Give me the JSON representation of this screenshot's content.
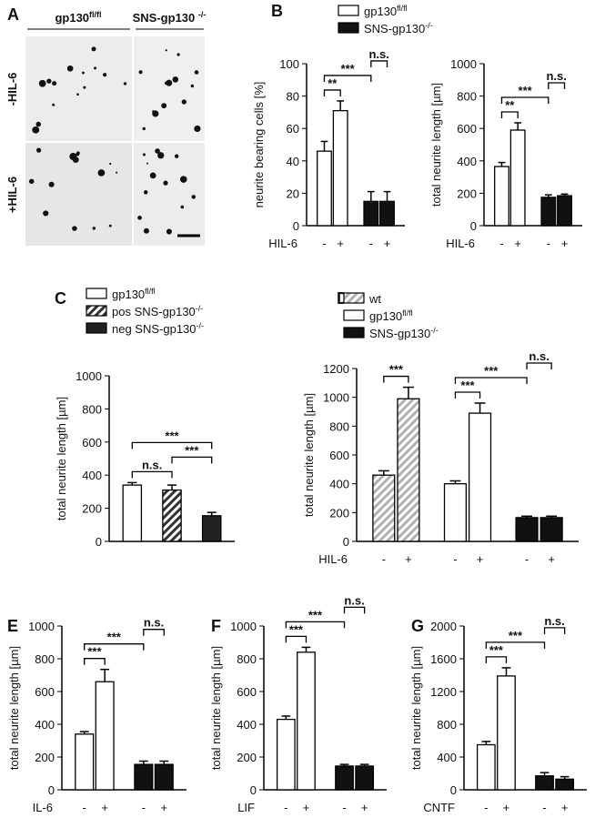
{
  "panel_a": {
    "label": "A",
    "columns": [
      {
        "text": "gp130",
        "sup": "fl/fl"
      },
      {
        "text": "SNS-gp130 ",
        "sup": "-/-"
      }
    ],
    "rows": [
      "-HIL-6",
      "+HIL-6"
    ]
  },
  "chart_data": [
    {
      "type": "bar",
      "panel": "B",
      "ylabel": "neurite bearing cells [%]",
      "xlabel": "HIL-6",
      "categories": [
        "-",
        "+",
        "-",
        "+"
      ],
      "ylim": [
        0,
        100
      ],
      "yticks": [
        0,
        20,
        40,
        60,
        80,
        100
      ],
      "series": [
        {
          "name": "gp130",
          "name_sup": "fl/fl",
          "color": "#ffffff",
          "values": [
            46,
            71,
            null,
            null
          ],
          "errors": [
            6,
            6,
            null,
            null
          ]
        },
        {
          "name": "SNS-gp130",
          "name_sup": "-/-",
          "color": "#111111",
          "values": [
            null,
            null,
            15,
            15
          ],
          "errors": [
            null,
            null,
            6,
            6
          ]
        }
      ],
      "annotations": [
        {
          "text": "**",
          "from": 0,
          "to": 1
        },
        {
          "text": "***",
          "from": 0,
          "to": 2
        },
        {
          "text": "n.s.",
          "from": 2,
          "to": 3
        }
      ]
    },
    {
      "type": "bar",
      "ylabel": "total neurite length [µm]",
      "xlabel": "HIL-6",
      "categories": [
        "-",
        "+",
        "-",
        "+"
      ],
      "ylim": [
        0,
        1000
      ],
      "yticks": [
        0,
        200,
        400,
        600,
        800,
        1000
      ],
      "series": [
        {
          "color": "#ffffff",
          "values": [
            365,
            590,
            null,
            null
          ],
          "errors": [
            25,
            45,
            null,
            null
          ]
        },
        {
          "color": "#111111",
          "values": [
            null,
            null,
            175,
            185
          ],
          "errors": [
            null,
            null,
            15,
            10
          ]
        }
      ],
      "annotations": [
        {
          "text": "**",
          "from": 0,
          "to": 1
        },
        {
          "text": "***",
          "from": 0,
          "to": 2
        },
        {
          "text": "n.s.",
          "from": 2,
          "to": 3
        }
      ]
    },
    {
      "type": "bar",
      "panel": "C",
      "ylabel": "total neurite length [µm]",
      "ylim": [
        0,
        1000
      ],
      "yticks": [
        0,
        200,
        400,
        600,
        800,
        1000
      ],
      "series": [
        {
          "name": "gp130",
          "name_sup": "fl/fl",
          "color": "#ffffff",
          "values": [
            340,
            null,
            null
          ],
          "errors": [
            15,
            null,
            null
          ]
        },
        {
          "name": "pos SNS-gp130",
          "name_sup": "-/-",
          "color": "#333333",
          "hatch": true,
          "values": [
            null,
            310,
            null
          ],
          "errors": [
            null,
            30,
            null
          ]
        },
        {
          "name": "neg SNS-gp130",
          "name_sup": "-/-",
          "color": "#222222",
          "values": [
            null,
            null,
            155
          ],
          "errors": [
            null,
            null,
            20
          ]
        }
      ],
      "annotations": [
        {
          "text": "n.s.",
          "from": 0,
          "to": 1
        },
        {
          "text": "***",
          "from": 1,
          "to": 2
        },
        {
          "text": "***",
          "from": 0,
          "to": 2
        }
      ]
    },
    {
      "type": "bar",
      "panel": "D",
      "ylabel": "total neurite length [µm]",
      "xlabel": "HIL-6",
      "categories": [
        "-",
        "+",
        "-",
        "+",
        "-",
        "+"
      ],
      "ylim": [
        0,
        1200
      ],
      "yticks": [
        0,
        200,
        400,
        600,
        800,
        1000,
        1200
      ],
      "series": [
        {
          "name": "wt",
          "color": "#b0b0b0",
          "hatch": true,
          "values": [
            460,
            990,
            null,
            null,
            null,
            null
          ],
          "errors": [
            30,
            80,
            null,
            null,
            null,
            null
          ]
        },
        {
          "name": "gp130",
          "name_sup": "fl/fl",
          "color": "#ffffff",
          "values": [
            null,
            null,
            400,
            890,
            null,
            null
          ],
          "errors": [
            null,
            null,
            20,
            70,
            null,
            null
          ]
        },
        {
          "name": "SNS-gp130",
          "name_sup": "-/-",
          "color": "#111111",
          "values": [
            null,
            null,
            null,
            null,
            165,
            165
          ],
          "errors": [
            null,
            null,
            null,
            null,
            10,
            10
          ]
        }
      ],
      "annotations": [
        {
          "text": "***",
          "from": 0,
          "to": 1
        },
        {
          "text": "***",
          "from": 2,
          "to": 3
        },
        {
          "text": "***",
          "from": 2,
          "to": 4
        },
        {
          "text": "n.s.",
          "from": 4,
          "to": 5
        }
      ]
    },
    {
      "type": "bar",
      "panel": "E",
      "ylabel": "total neurite length [µm]",
      "xlabel": "IL-6",
      "categories": [
        "-",
        "+",
        "-",
        "+"
      ],
      "ylim": [
        0,
        1000
      ],
      "yticks": [
        0,
        200,
        400,
        600,
        800,
        1000
      ],
      "series": [
        {
          "color": "#ffffff",
          "values": [
            340,
            660,
            null,
            null
          ],
          "errors": [
            15,
            75,
            null,
            null
          ]
        },
        {
          "color": "#111111",
          "values": [
            null,
            null,
            155,
            155
          ],
          "errors": [
            null,
            null,
            20,
            20
          ]
        }
      ],
      "annotations": [
        {
          "text": "***",
          "from": 0,
          "to": 1
        },
        {
          "text": "***",
          "from": 0,
          "to": 2
        },
        {
          "text": "n.s.",
          "from": 2,
          "to": 3
        }
      ]
    },
    {
      "type": "bar",
      "panel": "F",
      "ylabel": "total neurite length [µm]",
      "xlabel": "LIF",
      "categories": [
        "-",
        "+",
        "-",
        "+"
      ],
      "ylim": [
        0,
        1000
      ],
      "yticks": [
        0,
        200,
        400,
        600,
        800,
        1000
      ],
      "series": [
        {
          "color": "#ffffff",
          "values": [
            430,
            840,
            null,
            null
          ],
          "errors": [
            20,
            30,
            null,
            null
          ]
        },
        {
          "color": "#111111",
          "values": [
            null,
            null,
            145,
            145
          ],
          "errors": [
            null,
            null,
            10,
            10
          ]
        }
      ],
      "annotations": [
        {
          "text": "***",
          "from": 0,
          "to": 1
        },
        {
          "text": "***",
          "from": 0,
          "to": 2
        },
        {
          "text": "n.s.",
          "from": 2,
          "to": 3
        }
      ]
    },
    {
      "type": "bar",
      "panel": "G",
      "ylabel": "total neurite length [µm]",
      "xlabel": "CNTF",
      "categories": [
        "-",
        "+",
        "-",
        "+"
      ],
      "ylim": [
        0,
        2000
      ],
      "yticks": [
        0,
        400,
        800,
        1200,
        1600,
        2000
      ],
      "series": [
        {
          "color": "#ffffff",
          "values": [
            550,
            1390,
            null,
            null
          ],
          "errors": [
            40,
            100,
            null,
            null
          ]
        },
        {
          "color": "#111111",
          "values": [
            null,
            null,
            170,
            130
          ],
          "errors": [
            null,
            null,
            40,
            30
          ]
        }
      ],
      "annotations": [
        {
          "text": "***",
          "from": 0,
          "to": 1
        },
        {
          "text": "***",
          "from": 0,
          "to": 2
        },
        {
          "text": "n.s.",
          "from": 2,
          "to": 3
        }
      ]
    }
  ]
}
